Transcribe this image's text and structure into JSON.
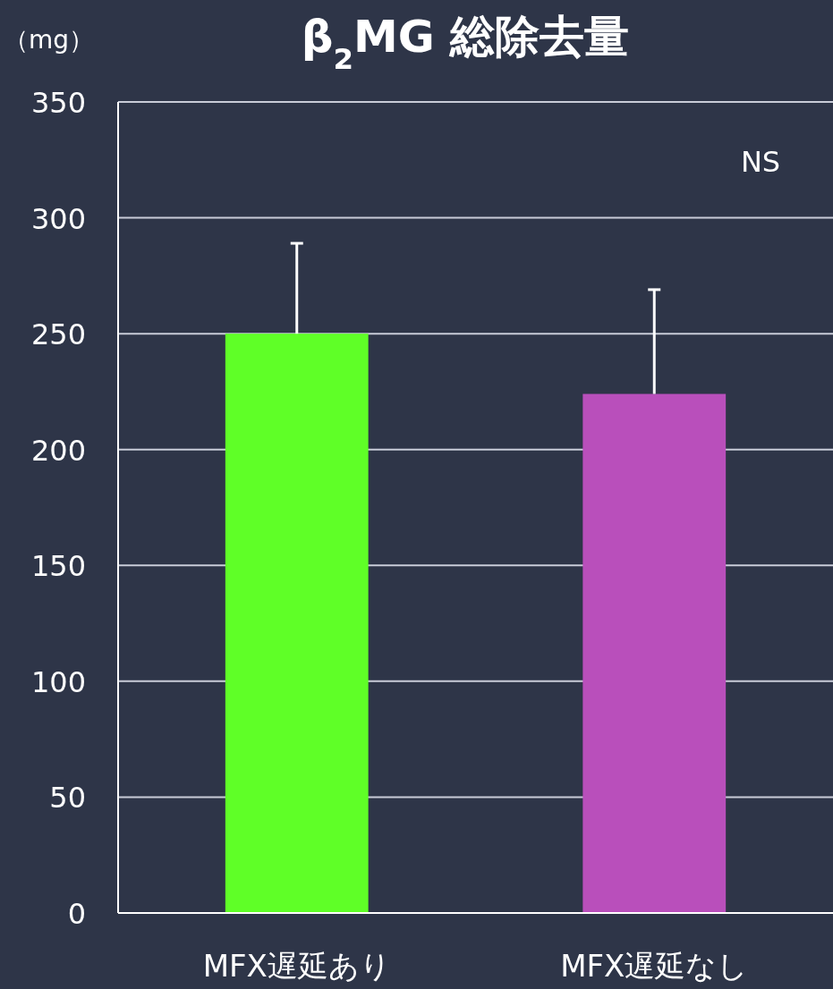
{
  "chart_data": {
    "type": "bar",
    "title": "β$_{2}$MG 総除去量",
    "ylabel": "（mg）",
    "categories": [
      "MFX遅延あり",
      "MFX遅延なし"
    ],
    "values": [
      250,
      224
    ],
    "colors": [
      "#5fff27",
      "#b94fbb"
    ],
    "errors": [
      [
        250,
        289
      ],
      [
        224,
        269
      ]
    ],
    "ylim": [
      0,
      350
    ],
    "yticks": [
      0,
      50,
      100,
      150,
      200,
      250,
      300,
      350
    ],
    "grid": "y",
    "annotations": [
      "NS"
    ]
  }
}
